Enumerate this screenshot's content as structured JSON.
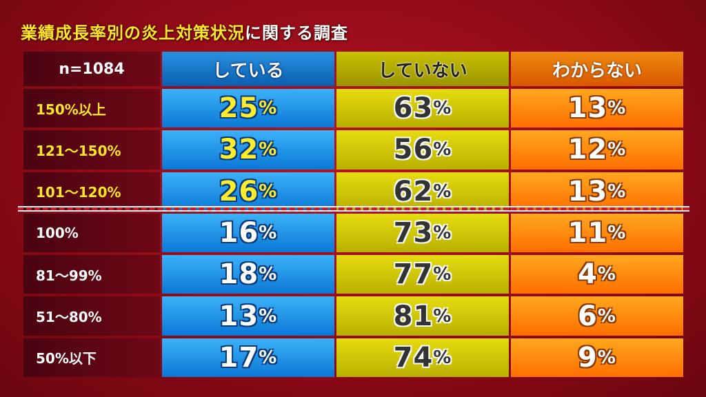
{
  "title": {
    "highlight": "業績成長率別の炎上対策状況",
    "rest": "に関する調査"
  },
  "table": {
    "header": [
      "n=1084",
      "している",
      "していない",
      "わからない"
    ],
    "rows": [
      [
        "150%以上",
        "25%",
        "63%",
        "13%"
      ],
      [
        "121～150%",
        "32%",
        "56%",
        "12%"
      ],
      [
        "101～120%",
        "26%",
        "62%",
        "13%"
      ],
      [
        "100%",
        "16%",
        "73%",
        "11%"
      ],
      [
        "81～99%",
        "18%",
        "77%",
        "4%"
      ],
      [
        "51～80%",
        "13%",
        "81%",
        "6%"
      ],
      [
        "50%以下",
        "17%",
        "74%",
        "9%"
      ]
    ]
  }
}
